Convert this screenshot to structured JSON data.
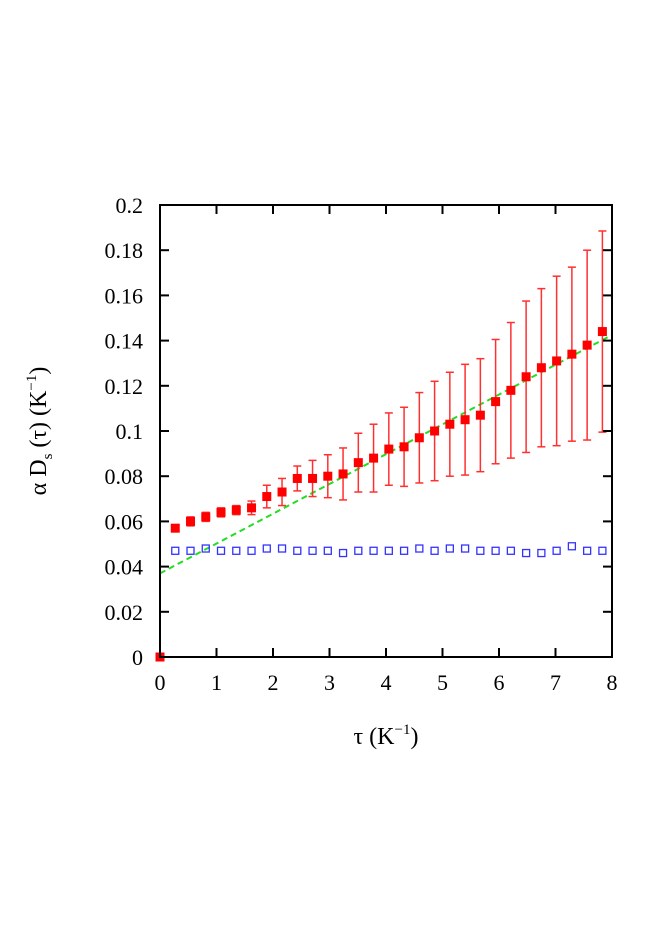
{
  "chart_data": {
    "type": "scatter",
    "title": "",
    "xlabel": {
      "main": "τ (K",
      "sup": "−1",
      "end": ")"
    },
    "ylabel": {
      "pre": "α D",
      "sub": "s",
      "mid": " (τ) (K",
      "sup": "−1",
      "end": ")"
    },
    "xlim": [
      0,
      8
    ],
    "ylim": [
      0,
      0.2
    ],
    "xticks": [
      "0",
      "1",
      "2",
      "3",
      "4",
      "5",
      "6",
      "7",
      "8"
    ],
    "yticks": [
      "0",
      "0.02",
      "0.04",
      "0.06",
      "0.08",
      "0.1",
      "0.12",
      "0.14",
      "0.16",
      "0.18",
      "0.2"
    ],
    "grid": false,
    "legend": "none",
    "series": [
      {
        "marker": "filled-square",
        "color": "#ff0000",
        "errorbar_color": "#ff3030",
        "x": [
          0,
          0.27,
          0.54,
          0.81,
          1.08,
          1.35,
          1.62,
          1.89,
          2.16,
          2.43,
          2.7,
          2.97,
          3.24,
          3.51,
          3.78,
          4.05,
          4.32,
          4.59,
          4.86,
          5.13,
          5.4,
          5.67,
          5.94,
          6.21,
          6.48,
          6.75,
          7.02,
          7.29,
          7.56,
          7.83
        ],
        "y": [
          0,
          0.057,
          0.06,
          0.062,
          0.064,
          0.065,
          0.066,
          0.071,
          0.073,
          0.079,
          0.079,
          0.08,
          0.081,
          0.086,
          0.088,
          0.092,
          0.093,
          0.097,
          0.1,
          0.103,
          0.105,
          0.107,
          0.113,
          0.118,
          0.124,
          0.128,
          0.131,
          0.134,
          0.138,
          0.144
        ],
        "yerr": [
          0,
          0,
          0.002,
          0.002,
          0.002,
          0.002,
          0.003,
          0.005,
          0.006,
          0.0055,
          0.008,
          0.0095,
          0.0115,
          0.013,
          0.015,
          0.016,
          0.0175,
          0.02,
          0.022,
          0.023,
          0.0245,
          0.025,
          0.0275,
          0.03,
          0.0335,
          0.035,
          0.0375,
          0.0385,
          0.042,
          0.0445
        ]
      },
      {
        "marker": "open-square",
        "color": "#3333ff",
        "x": [
          0.27,
          0.54,
          0.81,
          1.08,
          1.35,
          1.62,
          1.89,
          2.16,
          2.43,
          2.7,
          2.97,
          3.24,
          3.51,
          3.78,
          4.05,
          4.32,
          4.59,
          4.86,
          5.13,
          5.4,
          5.67,
          5.94,
          6.21,
          6.48,
          6.75,
          7.02,
          7.29,
          7.56,
          7.83
        ],
        "y": [
          0.047,
          0.047,
          0.048,
          0.047,
          0.047,
          0.047,
          0.048,
          0.048,
          0.047,
          0.047,
          0.047,
          0.046,
          0.047,
          0.047,
          0.047,
          0.047,
          0.048,
          0.047,
          0.048,
          0.048,
          0.047,
          0.047,
          0.047,
          0.046,
          0.046,
          0.047,
          0.049,
          0.047,
          0.047
        ]
      }
    ],
    "fit_line": {
      "style": "dashed",
      "color": "#22dd22",
      "x": [
        0,
        8
      ],
      "y": [
        0.037,
        0.1425
      ]
    }
  }
}
